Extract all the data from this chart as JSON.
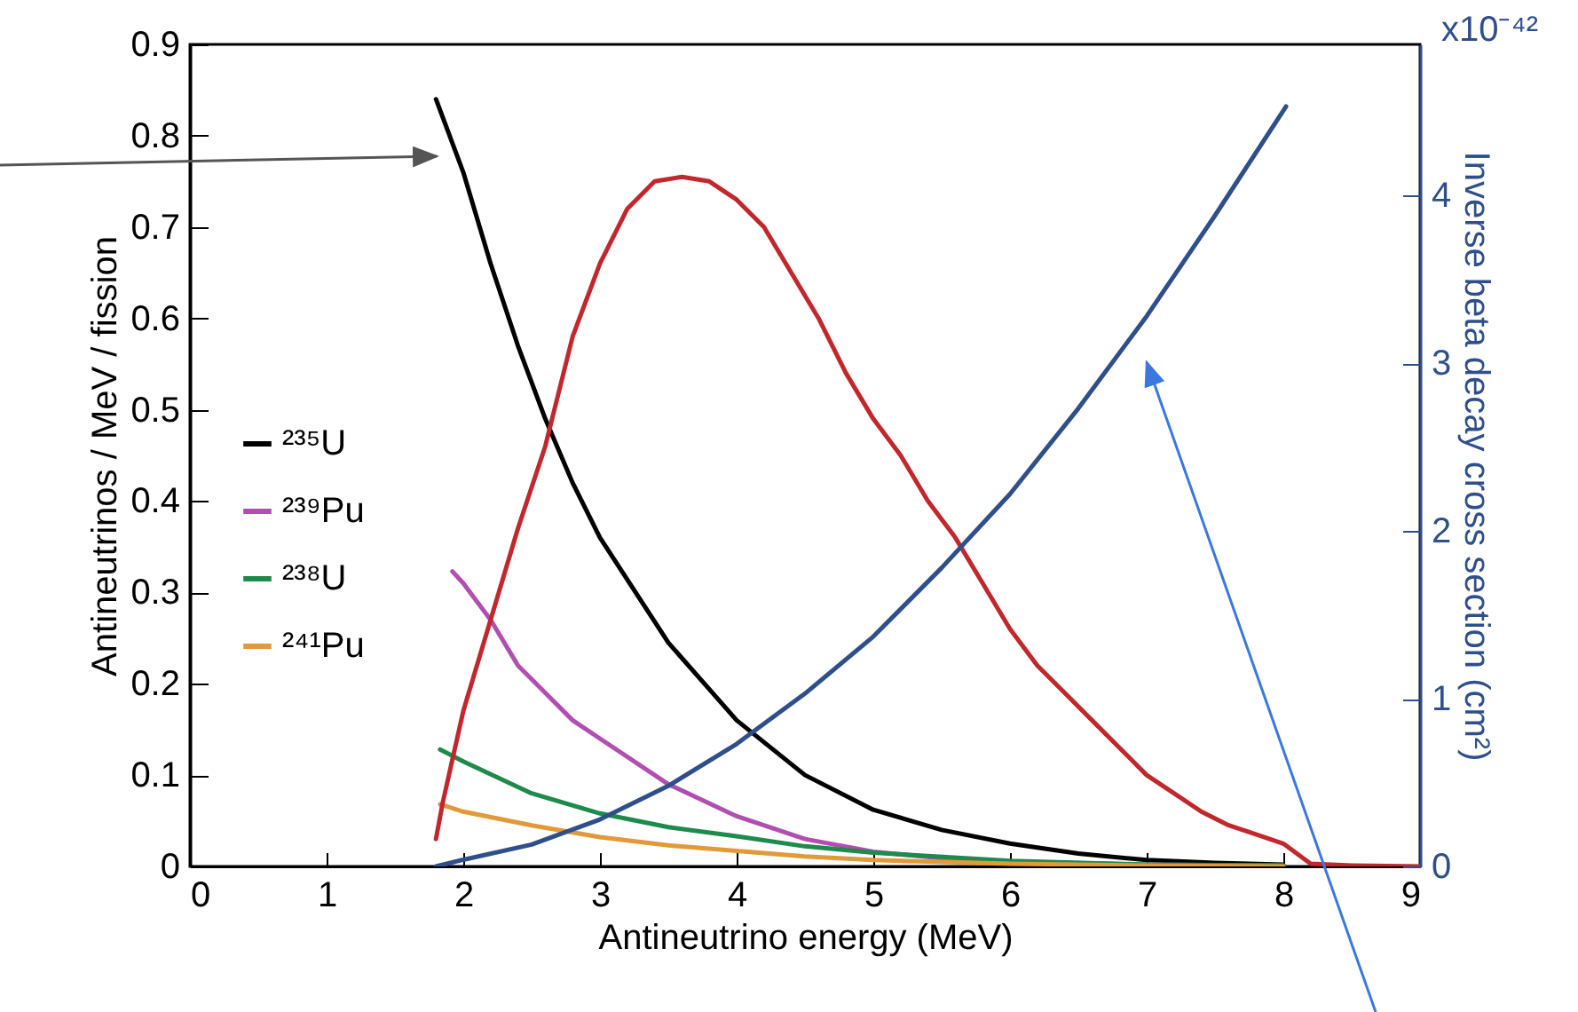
{
  "chart_data": {
    "type": "line",
    "xlabel": "Antineutrino energy (MeV)",
    "ylabel": "Antineutrinos / MeV / fission",
    "y2label": "Inverse beta decay cross section (cm²)",
    "annotations": [
      "x10⁻⁴²"
    ],
    "xlim": [
      0,
      9
    ],
    "xticks": [
      0,
      1,
      2,
      3,
      4,
      5,
      6,
      7,
      8,
      9
    ],
    "ylim": [
      0,
      0.9
    ],
    "yticks": [
      0,
      0.1,
      0.2,
      0.3,
      0.4,
      0.5,
      0.6,
      0.7,
      0.8,
      0.9
    ],
    "y2lim": [
      0,
      4.9
    ],
    "y2ticks": [
      0,
      1,
      2,
      3,
      4
    ],
    "grid": false,
    "legend": "left",
    "series": [
      {
        "name": "²³⁵U",
        "color": "#000000",
        "x": [
          1.8,
          2,
          2.2,
          2.4,
          2.6,
          2.8,
          3,
          3.5,
          4,
          4.5,
          5,
          5.5,
          6,
          6.5,
          7,
          7.5,
          8
        ],
        "values": [
          0.84,
          0.76,
          0.66,
          0.57,
          0.49,
          0.42,
          0.36,
          0.245,
          0.16,
          0.1,
          0.062,
          0.04,
          0.025,
          0.014,
          0.007,
          0.004,
          0.002
        ]
      },
      {
        "name": "²³⁹Pu",
        "color": "#b04fb0",
        "x": [
          1.92,
          2,
          2.2,
          2.4,
          2.6,
          2.8,
          3,
          3.5,
          4,
          4.5,
          5,
          5.5,
          6,
          7,
          8
        ],
        "values": [
          0.323,
          0.31,
          0.27,
          0.22,
          0.19,
          0.16,
          0.14,
          0.09,
          0.055,
          0.03,
          0.016,
          0.009,
          0.005,
          0.002,
          0.001
        ]
      },
      {
        "name": "²³⁸U",
        "color": "#1e8a4c",
        "x": [
          1.83,
          2,
          2.5,
          3,
          3.5,
          4,
          4.5,
          5,
          6,
          7,
          8
        ],
        "values": [
          0.128,
          0.115,
          0.08,
          0.058,
          0.043,
          0.033,
          0.022,
          0.015,
          0.006,
          0.002,
          0.001
        ]
      },
      {
        "name": "²⁴¹Pu",
        "color": "#e09a3a",
        "x": [
          1.83,
          2,
          2.5,
          3,
          3.5,
          4,
          4.5,
          5,
          6,
          7,
          8
        ],
        "values": [
          0.068,
          0.06,
          0.045,
          0.032,
          0.023,
          0.017,
          0.011,
          0.007,
          0.003,
          0.001,
          0
        ]
      },
      {
        "color": "#c0282d",
        "x": [
          1.8,
          1.85,
          2,
          2.2,
          2.4,
          2.6,
          2.8,
          3,
          3.2,
          3.4,
          3.6,
          3.8,
          4,
          4.2,
          4.4,
          4.6,
          4.8,
          5,
          5.2,
          5.4,
          5.6,
          5.8,
          6,
          6.2,
          6.4,
          6.6,
          6.8,
          7,
          7.2,
          7.4,
          7.6,
          7.8,
          8,
          8.2,
          8.5,
          9
        ],
        "values": [
          0.03,
          0.07,
          0.17,
          0.27,
          0.37,
          0.46,
          0.58,
          0.66,
          0.72,
          0.75,
          0.755,
          0.75,
          0.73,
          0.7,
          0.65,
          0.6,
          0.54,
          0.49,
          0.45,
          0.4,
          0.36,
          0.31,
          0.26,
          0.22,
          0.19,
          0.16,
          0.13,
          0.1,
          0.08,
          0.06,
          0.045,
          0.035,
          0.025,
          0.003,
          0.001,
          0
        ]
      },
      {
        "color": "#2f4f8a",
        "axis": "y2",
        "x": [
          1.8,
          2,
          2.5,
          3,
          3.5,
          4,
          4.5,
          5,
          5.5,
          6,
          6.5,
          7,
          7.5,
          8.02
        ],
        "values": [
          0,
          0.04,
          0.13,
          0.28,
          0.48,
          0.73,
          1.03,
          1.37,
          1.78,
          2.22,
          2.73,
          3.28,
          3.88,
          4.53
        ]
      }
    ]
  }
}
